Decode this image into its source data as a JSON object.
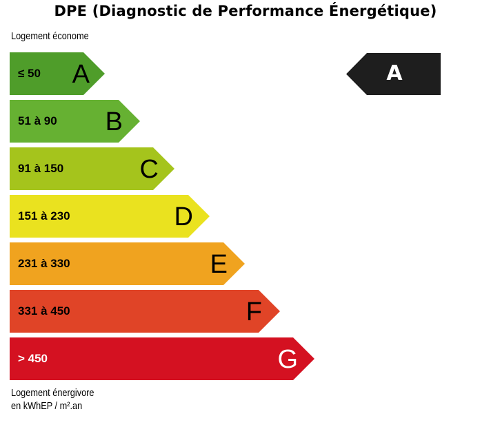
{
  "title": "DPE (Diagnostic de Performance Énergétique)",
  "top_label": "Logement économe",
  "bottom_label": {
    "line1": "Logement énergivore",
    "line2": "en kWhEP / m².an"
  },
  "classes": [
    {
      "letter": "A",
      "range": "≤ 50",
      "color": "#4f9d2a"
    },
    {
      "letter": "B",
      "range": "51 à 90",
      "color": "#66b132"
    },
    {
      "letter": "C",
      "range": "91 à 150",
      "color": "#a5c41c"
    },
    {
      "letter": "D",
      "range": "151 à 230",
      "color": "#eae21f"
    },
    {
      "letter": "E",
      "range": "231 à 330",
      "color": "#f0a31f"
    },
    {
      "letter": "F",
      "range": "331 à 450",
      "color": "#e04427"
    },
    {
      "letter": "G",
      "range": "> 450",
      "color": "#d41121"
    }
  ],
  "indicator": {
    "letter": "A",
    "color": "#1e1e1e"
  }
}
